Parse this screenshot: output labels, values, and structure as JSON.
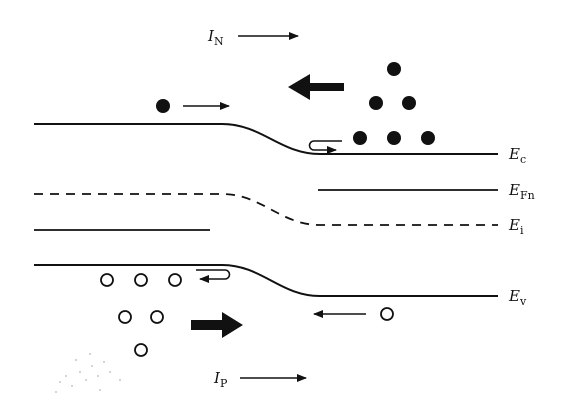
{
  "labels": {
    "current_n": {
      "symbol": "I",
      "sub": "N"
    },
    "current_p": {
      "symbol": "I",
      "sub": "P"
    },
    "conduction_band": {
      "symbol": "E",
      "sub": "c"
    },
    "quasi_fermi_n": {
      "symbol": "E",
      "sub": "Fn"
    },
    "intrinsic_level": {
      "symbol": "E",
      "sub": "i"
    },
    "valence_band": {
      "symbol": "E",
      "sub": "v"
    }
  },
  "carriers": {
    "electron_count": 7,
    "hole_count": 7
  },
  "colors": {
    "ink": "#111111",
    "background": "#ffffff"
  }
}
